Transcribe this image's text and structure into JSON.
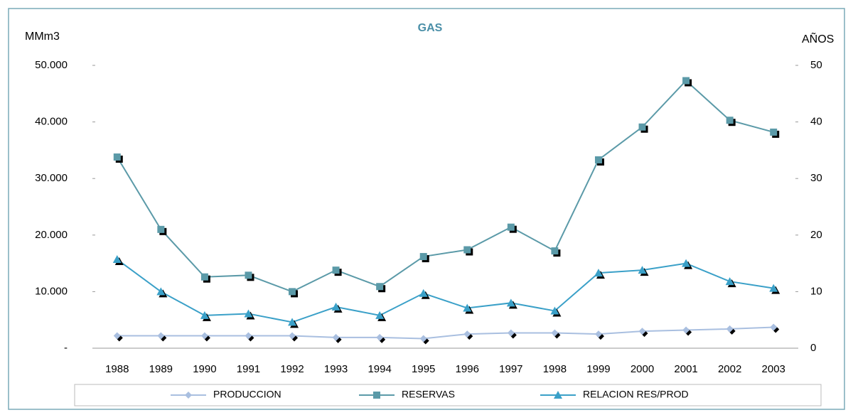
{
  "chart_data": {
    "type": "line",
    "title": "GAS",
    "ylabel": "MMm3",
    "y2label": "AÑOS",
    "categories": [
      "1988",
      "1989",
      "1990",
      "1991",
      "1992",
      "1993",
      "1994",
      "1995",
      "1996",
      "1997",
      "1998",
      "1999",
      "2000",
      "2001",
      "2002",
      "2003"
    ],
    "series": [
      {
        "name": "PRODUCCION",
        "color": "#a9bfe0",
        "marker": "diamond",
        "values": [
          2200,
          2200,
          2200,
          2200,
          2200,
          1900,
          1900,
          1700,
          2500,
          2700,
          2700,
          2500,
          3000,
          3200,
          3400,
          3700
        ]
      },
      {
        "name": "RESERVAS",
        "color": "#5b9aa8",
        "marker": "square",
        "values": [
          33800,
          21000,
          12600,
          12900,
          10000,
          13800,
          10900,
          16200,
          17400,
          21400,
          17200,
          33300,
          39100,
          47300,
          40300,
          38200
        ]
      },
      {
        "name": "RELACION RES/PROD",
        "color": "#3aa0c8",
        "marker": "triangle",
        "axis": "y2",
        "values": [
          15.7,
          10.0,
          5.8,
          6.1,
          4.6,
          7.3,
          5.8,
          9.7,
          7.1,
          8.0,
          6.6,
          13.3,
          13.8,
          15.0,
          11.8,
          10.6
        ]
      }
    ],
    "ylim": [
      0,
      50000
    ],
    "yticks": [
      {
        "value": 0,
        "label": "-"
      },
      {
        "value": 10000,
        "label": "10.000"
      },
      {
        "value": 20000,
        "label": "20.000"
      },
      {
        "value": 30000,
        "label": "30.000"
      },
      {
        "value": 40000,
        "label": "40.000"
      },
      {
        "value": 50000,
        "label": "50.000"
      }
    ],
    "y2lim": [
      0,
      50
    ],
    "y2ticks": [
      0,
      10,
      20,
      30,
      40,
      50
    ],
    "legend": "bottom"
  }
}
